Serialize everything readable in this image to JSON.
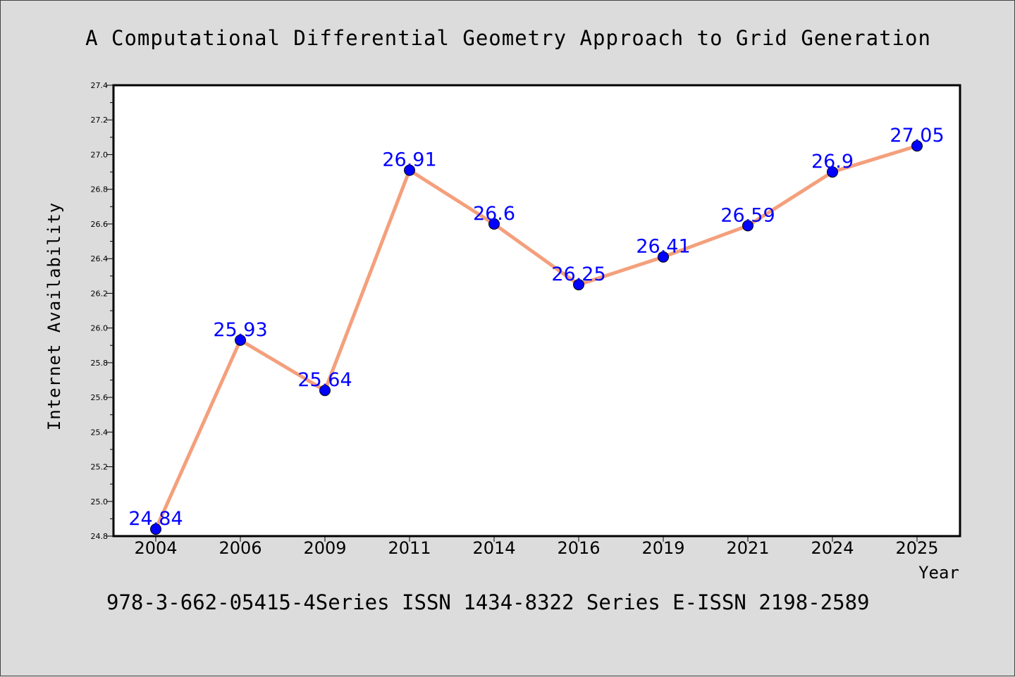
{
  "chart_data": {
    "type": "line",
    "title": "A Computational Differential Geometry Approach to Grid Generation",
    "xlabel": "Year",
    "ylabel": "Internet Availability",
    "categories": [
      "2004",
      "2006",
      "2009",
      "2011",
      "2014",
      "2016",
      "2019",
      "2021",
      "2024",
      "2025"
    ],
    "series": [
      {
        "values": [
          24.84,
          25.93,
          25.64,
          26.91,
          26.6,
          26.25,
          26.41,
          26.59,
          26.9,
          27.05
        ],
        "labels": [
          "24.84",
          "25.93",
          "25.64",
          "26.91",
          "26.6",
          "26.25",
          "26.41",
          "26.59",
          "26.9",
          "27.05"
        ]
      }
    ],
    "ylim": [
      24.8,
      27.4
    ],
    "yticks": [
      "24.8",
      "25.0",
      "25.2",
      "25.4",
      "25.6",
      "25.8",
      "26.0",
      "26.2",
      "26.4",
      "26.6",
      "26.8",
      "27.0",
      "27.2",
      "27.4"
    ],
    "grid": false,
    "footer": "978-3-662-05415-4Series ISSN 1434-8322 Series E-ISSN 2198-2589",
    "colors": {
      "background": "#dcdcdc",
      "plot_area": "#ffffff",
      "line": "#f4a07c",
      "marker": "#0000ff",
      "data_label": "#0000ff",
      "text": "#000000"
    }
  }
}
